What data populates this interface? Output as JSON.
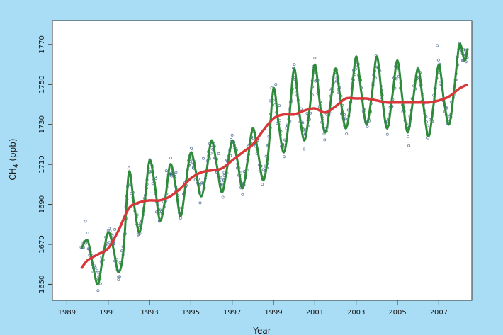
{
  "colors": {
    "frame": "#a9dcf5",
    "plot_bg": "#ffffff",
    "seasonal_line": "#2e8b3a",
    "trend_line": "#d9383a",
    "points": "#3a5f8a"
  },
  "chart_data": {
    "type": "line",
    "title": "",
    "xlabel": "Year",
    "ylabel": "CH4 (ppb)",
    "ylabel_main": "CH",
    "ylabel_sub": "4",
    "ylabel_unit": " (ppb)",
    "xlim": [
      1988.3,
      2008.6
    ],
    "ylim": [
      1642,
      1782
    ],
    "x_ticks": [
      1989,
      1991,
      1993,
      1995,
      1997,
      1999,
      2001,
      2003,
      2005,
      2007
    ],
    "x_tick_labels": [
      "1989",
      "1991",
      "1993",
      "1995",
      "1997",
      "1999",
      "2001",
      "2003",
      "2005",
      "2007"
    ],
    "y_ticks": [
      1650,
      1670,
      1690,
      1710,
      1730,
      1750,
      1770
    ],
    "y_tick_labels": [
      "1650",
      "1670",
      "1690",
      "1710",
      "1730",
      "1750",
      "1770"
    ],
    "grid": false,
    "legend": "none",
    "series": [
      {
        "kind": "trend",
        "x": [
          1989.7,
          1990.0,
          1990.5,
          1991.0,
          1991.5,
          1992.0,
          1992.5,
          1993.0,
          1993.5,
          1994.0,
          1994.5,
          1995.0,
          1995.5,
          1996.0,
          1996.5,
          1997.0,
          1997.5,
          1998.0,
          1998.5,
          1999.0,
          1999.5,
          2000.0,
          2000.5,
          2001.0,
          2001.5,
          2002.0,
          2002.5,
          2003.0,
          2003.5,
          2004.0,
          2004.5,
          2005.0,
          2005.5,
          2006.0,
          2006.5,
          2007.0,
          2007.5,
          2008.0,
          2008.4
        ],
        "y": [
          1658,
          1662,
          1665,
          1668,
          1677,
          1688,
          1691,
          1692,
          1692,
          1694,
          1698,
          1703,
          1706,
          1707,
          1708,
          1712,
          1716,
          1720,
          1727,
          1733,
          1735,
          1735,
          1737,
          1738,
          1736,
          1739,
          1743,
          1743,
          1743,
          1742,
          1741,
          1741,
          1741,
          1741,
          1741,
          1742,
          1744,
          1748,
          1750
        ]
      },
      {
        "kind": "seasonal",
        "x": [
          1989.7,
          1990.0,
          1990.25,
          1990.5,
          1990.75,
          1991.0,
          1991.25,
          1991.5,
          1991.75,
          1992.0,
          1992.25,
          1992.5,
          1992.75,
          1993.0,
          1993.25,
          1993.5,
          1993.75,
          1994.0,
          1994.25,
          1994.5,
          1994.75,
          1995.0,
          1995.25,
          1995.5,
          1995.75,
          1996.0,
          1996.25,
          1996.5,
          1996.75,
          1997.0,
          1997.25,
          1997.5,
          1997.75,
          1998.0,
          1998.25,
          1998.5,
          1998.75,
          1999.0,
          1999.25,
          1999.5,
          1999.75,
          2000.0,
          2000.25,
          2000.5,
          2000.75,
          2001.0,
          2001.25,
          2001.5,
          2001.75,
          2002.0,
          2002.25,
          2002.5,
          2002.75,
          2003.0,
          2003.25,
          2003.5,
          2003.75,
          2004.0,
          2004.25,
          2004.5,
          2004.75,
          2005.0,
          2005.25,
          2005.5,
          2005.75,
          2006.0,
          2006.25,
          2006.5,
          2006.75,
          2007.0,
          2007.25,
          2007.5,
          2007.75,
          2008.0,
          2008.25,
          2008.4
        ],
        "y": [
          1668,
          1672,
          1660,
          1650,
          1664,
          1676,
          1668,
          1656,
          1668,
          1706,
          1690,
          1676,
          1690,
          1712,
          1700,
          1682,
          1692,
          1710,
          1700,
          1684,
          1700,
          1716,
          1706,
          1694,
          1706,
          1722,
          1710,
          1696,
          1708,
          1722,
          1712,
          1698,
          1712,
          1728,
          1716,
          1702,
          1716,
          1748,
          1730,
          1716,
          1732,
          1758,
          1736,
          1722,
          1738,
          1760,
          1740,
          1726,
          1740,
          1758,
          1742,
          1728,
          1742,
          1764,
          1746,
          1730,
          1744,
          1764,
          1744,
          1728,
          1744,
          1762,
          1742,
          1726,
          1742,
          1758,
          1740,
          1724,
          1740,
          1760,
          1742,
          1730,
          1748,
          1770,
          1762,
          1768
        ]
      }
    ]
  }
}
